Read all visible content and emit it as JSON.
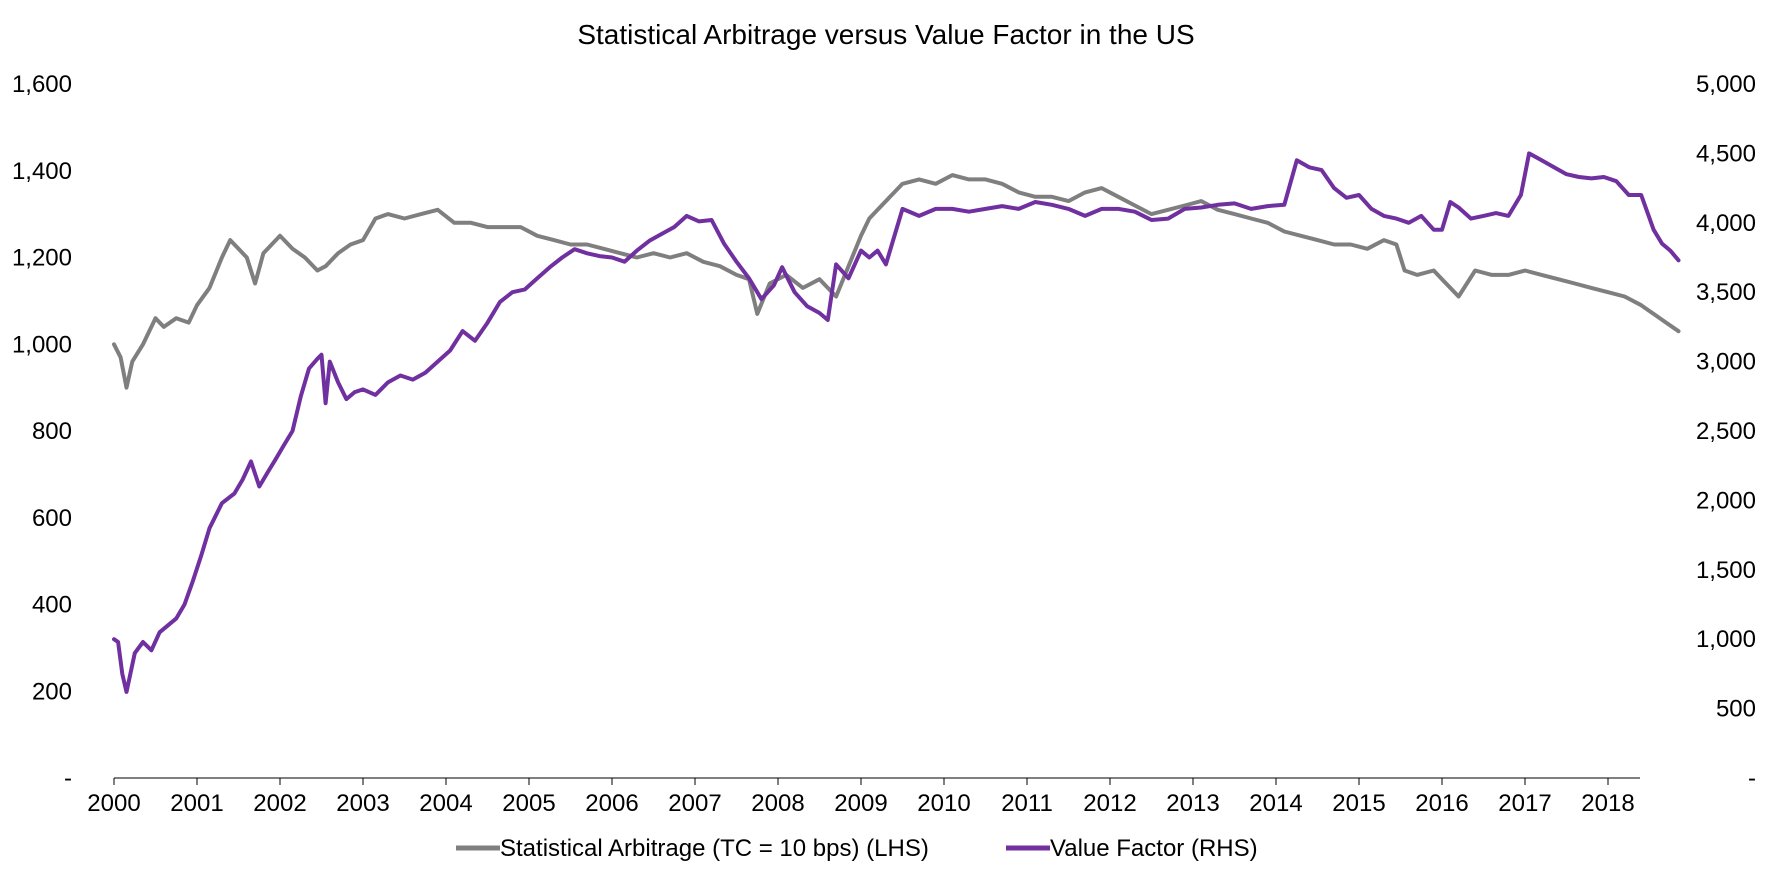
{
  "chart_data": {
    "type": "line",
    "title": "Statistical Arbitrage versus Value Factor in the US",
    "xlabel": "",
    "ylabel": "",
    "y2label": "",
    "grid": false,
    "legend": "bottom",
    "x_ticks": [
      "2000",
      "2001",
      "2002",
      "2003",
      "2004",
      "2005",
      "2006",
      "2007",
      "2008",
      "2009",
      "2010",
      "2011",
      "2012",
      "2013",
      "2014",
      "2015",
      "2016",
      "2017",
      "2018"
    ],
    "x_range": [
      2000,
      2018.9
    ],
    "y_left": {
      "ticks": [
        "-",
        "200",
        "400",
        "600",
        "800",
        "1,000",
        "1,200",
        "1,400",
        "1,600"
      ],
      "ylim": [
        0,
        1600
      ]
    },
    "y_right": {
      "ticks": [
        "-",
        "500",
        "1,000",
        "1,500",
        "2,000",
        "2,500",
        "3,000",
        "3,500",
        "4,000",
        "4,500",
        "5,000"
      ],
      "ylim": [
        0,
        5000
      ]
    },
    "series": [
      {
        "name": "Statistical Arbitrage (TC = 10 bps) (LHS)",
        "axis": "left",
        "color": "#7f7f7f",
        "x": [
          2000.0,
          2000.08,
          2000.15,
          2000.22,
          2000.35,
          2000.5,
          2000.6,
          2000.75,
          2000.9,
          2001.0,
          2001.15,
          2001.3,
          2001.4,
          2001.5,
          2001.6,
          2001.7,
          2001.8,
          2001.9,
          2002.0,
          2002.15,
          2002.3,
          2002.45,
          2002.55,
          2002.7,
          2002.85,
          2003.0,
          2003.15,
          2003.3,
          2003.5,
          2003.7,
          2003.9,
          2004.1,
          2004.3,
          2004.5,
          2004.7,
          2004.9,
          2005.1,
          2005.3,
          2005.5,
          2005.7,
          2005.9,
          2006.1,
          2006.3,
          2006.5,
          2006.7,
          2006.9,
          2007.1,
          2007.3,
          2007.5,
          2007.65,
          2007.75,
          2007.9,
          2008.1,
          2008.3,
          2008.5,
          2008.7,
          2008.85,
          2009.0,
          2009.1,
          2009.2,
          2009.35,
          2009.5,
          2009.7,
          2009.9,
          2010.1,
          2010.3,
          2010.5,
          2010.7,
          2010.9,
          2011.1,
          2011.3,
          2011.5,
          2011.7,
          2011.9,
          2012.1,
          2012.3,
          2012.5,
          2012.7,
          2012.9,
          2013.1,
          2013.3,
          2013.5,
          2013.7,
          2013.9,
          2014.1,
          2014.3,
          2014.5,
          2014.7,
          2014.9,
          2015.1,
          2015.3,
          2015.45,
          2015.55,
          2015.7,
          2015.9,
          2016.0,
          2016.2,
          2016.4,
          2016.6,
          2016.8,
          2017.0,
          2017.2,
          2017.4,
          2017.6,
          2017.8,
          2018.0,
          2018.2,
          2018.4,
          2018.55,
          2018.7,
          2018.85
        ],
        "y": [
          1000,
          970,
          900,
          960,
          1000,
          1060,
          1040,
          1060,
          1050,
          1090,
          1130,
          1200,
          1240,
          1220,
          1200,
          1140,
          1210,
          1230,
          1250,
          1220,
          1200,
          1170,
          1180,
          1210,
          1230,
          1240,
          1290,
          1300,
          1290,
          1300,
          1310,
          1280,
          1280,
          1270,
          1270,
          1270,
          1250,
          1240,
          1230,
          1230,
          1220,
          1210,
          1200,
          1210,
          1200,
          1210,
          1190,
          1180,
          1160,
          1150,
          1070,
          1140,
          1160,
          1130,
          1150,
          1110,
          1180,
          1250,
          1290,
          1310,
          1340,
          1370,
          1380,
          1370,
          1390,
          1380,
          1380,
          1370,
          1350,
          1340,
          1340,
          1330,
          1350,
          1360,
          1340,
          1320,
          1300,
          1310,
          1320,
          1330,
          1310,
          1300,
          1290,
          1280,
          1260,
          1250,
          1240,
          1230,
          1230,
          1220,
          1240,
          1230,
          1170,
          1160,
          1170,
          1150,
          1110,
          1170,
          1160,
          1160,
          1170,
          1160,
          1150,
          1140,
          1130,
          1120,
          1110,
          1090,
          1070,
          1050,
          1030
        ]
      },
      {
        "name": "Value Factor (RHS)",
        "axis": "right",
        "color": "#7030a0",
        "x": [
          2000.0,
          2000.05,
          2000.1,
          2000.15,
          2000.25,
          2000.35,
          2000.45,
          2000.55,
          2000.65,
          2000.75,
          2000.85,
          2000.95,
          2001.05,
          2001.15,
          2001.3,
          2001.45,
          2001.55,
          2001.65,
          2001.75,
          2001.85,
          2001.95,
          2002.05,
          2002.15,
          2002.25,
          2002.35,
          2002.45,
          2002.5,
          2002.55,
          2002.6,
          2002.7,
          2002.8,
          2002.9,
          2003.0,
          2003.15,
          2003.3,
          2003.45,
          2003.6,
          2003.75,
          2003.9,
          2004.05,
          2004.2,
          2004.35,
          2004.5,
          2004.65,
          2004.8,
          2004.95,
          2005.1,
          2005.25,
          2005.4,
          2005.55,
          2005.7,
          2005.85,
          2006.0,
          2006.15,
          2006.3,
          2006.45,
          2006.6,
          2006.75,
          2006.9,
          2007.05,
          2007.2,
          2007.35,
          2007.5,
          2007.65,
          2007.8,
          2007.95,
          2008.05,
          2008.2,
          2008.35,
          2008.5,
          2008.6,
          2008.7,
          2008.85,
          2009.0,
          2009.1,
          2009.2,
          2009.3,
          2009.5,
          2009.7,
          2009.9,
          2010.1,
          2010.3,
          2010.5,
          2010.7,
          2010.9,
          2011.1,
          2011.3,
          2011.5,
          2011.7,
          2011.9,
          2012.1,
          2012.3,
          2012.5,
          2012.7,
          2012.9,
          2013.1,
          2013.3,
          2013.5,
          2013.7,
          2013.9,
          2014.1,
          2014.25,
          2014.4,
          2014.55,
          2014.7,
          2014.85,
          2015.0,
          2015.15,
          2015.3,
          2015.45,
          2015.6,
          2015.75,
          2015.9,
          2016.0,
          2016.1,
          2016.2,
          2016.35,
          2016.5,
          2016.65,
          2016.8,
          2016.95,
          2017.05,
          2017.2,
          2017.35,
          2017.5,
          2017.65,
          2017.8,
          2017.95,
          2018.1,
          2018.25,
          2018.4,
          2018.55,
          2018.65,
          2018.75,
          2018.85
        ],
        "y": [
          1000,
          980,
          750,
          620,
          900,
          980,
          920,
          1050,
          1100,
          1150,
          1250,
          1420,
          1600,
          1800,
          1980,
          2050,
          2150,
          2280,
          2100,
          2200,
          2300,
          2400,
          2500,
          2750,
          2950,
          3020,
          3050,
          2700,
          3000,
          2850,
          2730,
          2780,
          2800,
          2760,
          2850,
          2900,
          2870,
          2920,
          3000,
          3080,
          3220,
          3150,
          3280,
          3430,
          3500,
          3520,
          3600,
          3680,
          3750,
          3810,
          3780,
          3760,
          3750,
          3720,
          3800,
          3870,
          3920,
          3970,
          4050,
          4010,
          4020,
          3850,
          3720,
          3600,
          3450,
          3550,
          3680,
          3500,
          3400,
          3350,
          3300,
          3700,
          3600,
          3800,
          3750,
          3800,
          3700,
          4100,
          4050,
          4100,
          4100,
          4080,
          4100,
          4120,
          4100,
          4150,
          4130,
          4100,
          4050,
          4100,
          4100,
          4080,
          4020,
          4030,
          4100,
          4110,
          4130,
          4140,
          4100,
          4120,
          4130,
          4450,
          4400,
          4380,
          4250,
          4180,
          4200,
          4100,
          4050,
          4030,
          4000,
          4050,
          3950,
          3950,
          4150,
          4110,
          4030,
          4050,
          4070,
          4050,
          4200,
          4500,
          4450,
          4400,
          4350,
          4330,
          4320,
          4330,
          4300,
          4200,
          4200,
          3950,
          3850,
          3800,
          3730
        ]
      }
    ]
  }
}
